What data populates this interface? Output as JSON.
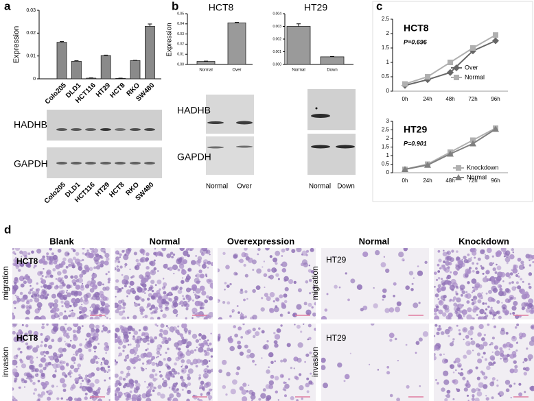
{
  "panel_letters": [
    "a",
    "b",
    "c",
    "d"
  ],
  "chart_data": [
    {
      "type": "bar",
      "y_label": "Expression",
      "categories": [
        "Colo205",
        "DLD1",
        "HCT116",
        "HT29",
        "HCT8",
        "RKO",
        "SW480"
      ],
      "values": [
        0.016,
        0.0077,
        0.0003,
        0.0102,
        0.0002,
        0.008,
        0.023
      ],
      "errors": [
        0.0003,
        0.0002,
        0.0001,
        0.0002,
        0.0001,
        0.0001,
        0.001
      ],
      "color": "#8a8a8a",
      "ylim": [
        0,
        0.03
      ],
      "yticks": [
        0,
        0.01,
        0.02,
        0.03
      ]
    },
    {
      "type": "bar",
      "title": "HCT8",
      "y_label": "Expression",
      "categories": [
        "Normal",
        "Over"
      ],
      "values": [
        0.003,
        0.041
      ],
      "errors": [
        0.0003,
        0.0005
      ],
      "color": "#9a9a9a",
      "ylim": [
        0,
        0.05
      ],
      "yticks": [
        {
          "value": 0,
          "label": "0.00"
        },
        {
          "value": 0.01,
          "label": "0.01"
        },
        {
          "value": 0.02,
          "label": "0.02"
        },
        {
          "value": 0.03,
          "label": "0.03"
        },
        {
          "value": 0.04,
          "label": "0.04"
        },
        {
          "value": 0.05,
          "label": "0.05"
        }
      ]
    },
    {
      "type": "bar",
      "title": "HT29",
      "categories": [
        "Normal",
        "Down"
      ],
      "values": [
        0.003,
        0.0006
      ],
      "errors": [
        0.0002,
        3e-05
      ],
      "color": "#9a9a9a",
      "ylim": [
        0,
        0.004
      ],
      "yticks": [
        {
          "value": 0,
          "label": "0.000"
        },
        {
          "value": 0.001,
          "label": "0.001"
        },
        {
          "value": 0.002,
          "label": "0.002"
        },
        {
          "value": 0.003,
          "label": "0.003"
        },
        {
          "value": 0.004,
          "label": "0.004"
        }
      ]
    },
    {
      "type": "line",
      "title": "HCT8",
      "annotation": "P=0.696",
      "categories": [
        "0h",
        "24h",
        "48h",
        "72h",
        "96h"
      ],
      "series": [
        {
          "name": "Over",
          "color": "#666666",
          "marker": "diamond",
          "values": [
            0.2,
            0.4,
            0.65,
            1.4,
            1.75
          ]
        },
        {
          "name": "Normal",
          "color": "#b0b0b0",
          "marker": "square",
          "values": [
            0.25,
            0.5,
            1.0,
            1.5,
            1.95
          ]
        }
      ],
      "ylim": [
        0,
        2.5
      ],
      "yticks": [
        0,
        0.5,
        1,
        1.5,
        2,
        2.5
      ]
    },
    {
      "type": "line",
      "title": "HT29",
      "annotation": "P=0.901",
      "categories": [
        "0h",
        "24h",
        "48h",
        "72h",
        "96h"
      ],
      "series": [
        {
          "name": "Knockdown",
          "color": "#b0b0b0",
          "marker": "square",
          "values": [
            0.2,
            0.5,
            1.2,
            1.9,
            2.6
          ]
        },
        {
          "name": "Normal",
          "color": "#808080",
          "marker": "triangle",
          "values": [
            0.2,
            0.45,
            1.1,
            1.7,
            2.55
          ]
        }
      ],
      "ylim": [
        0,
        3
      ],
      "yticks": [
        0,
        0.5,
        1,
        1.5,
        2,
        2.5,
        3
      ]
    }
  ],
  "blot_a": {
    "labels": [
      "HADHB",
      "GAPDH"
    ],
    "lanes": [
      "Colo205",
      "DLD1",
      "HCT116",
      "HT29",
      "HCT8",
      "RKO",
      "SW480"
    ]
  },
  "blot_b": {
    "labels": [
      "HADHB",
      "GAPDH"
    ],
    "lanes_hct8": [
      "Normal",
      "Over"
    ],
    "lanes_ht29": [
      "Normal",
      "Down"
    ]
  },
  "panel_d": {
    "columns": [
      "Blank",
      "Normal",
      "Overexpression",
      "Normal",
      "Knockdown"
    ],
    "rows": [
      "migration",
      "invasion"
    ],
    "image_labels": [
      "HCT8",
      "HCT8",
      "HT29",
      "HT29"
    ]
  }
}
